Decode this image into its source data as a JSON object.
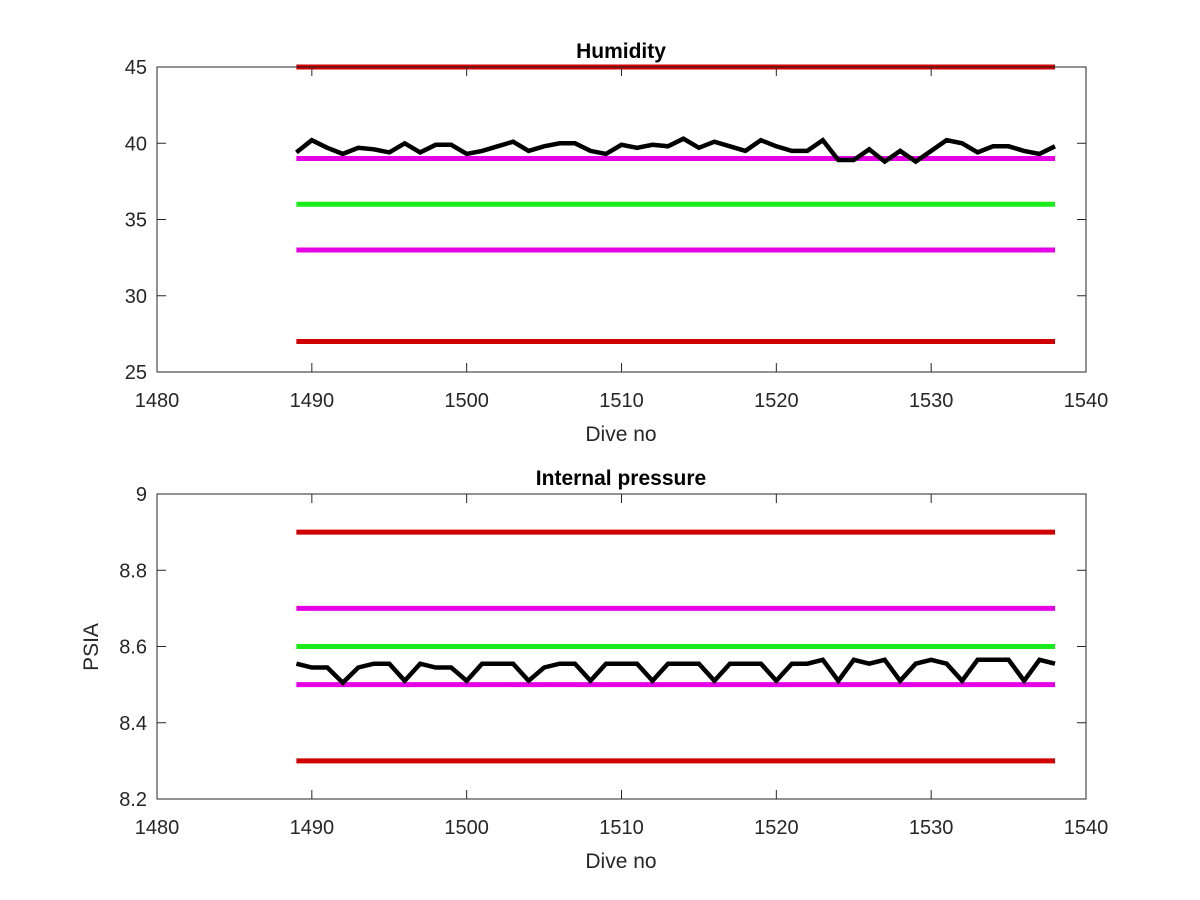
{
  "chart_data": [
    {
      "type": "line",
      "title": "Humidity",
      "xlabel": "Dive no",
      "ylabel": "",
      "xlim": [
        1480,
        1540
      ],
      "ylim": [
        25,
        45
      ],
      "xticks": [
        1480,
        1490,
        1500,
        1510,
        1520,
        1530,
        1540
      ],
      "yticks": [
        25,
        30,
        35,
        40,
        45
      ],
      "xtick_labels": [
        "1480",
        "1490",
        "1500",
        "1510",
        "1520",
        "1530",
        "1540"
      ],
      "ytick_labels": [
        "25",
        "30",
        "35",
        "40",
        "45"
      ],
      "grid": false,
      "legend": "none",
      "threshold_lines": [
        {
          "role": "upper-red",
          "y": 45,
          "x": [
            1489,
            1538
          ],
          "color": "#d00000"
        },
        {
          "role": "upper-magenta",
          "y": 39,
          "x": [
            1489,
            1538
          ],
          "color": "#e600e6"
        },
        {
          "role": "target-green",
          "y": 36,
          "x": [
            1489,
            1538
          ],
          "color": "#1aeb1a"
        },
        {
          "role": "lower-magenta",
          "y": 33,
          "x": [
            1489,
            1538
          ],
          "color": "#e600e6"
        },
        {
          "role": "lower-red",
          "y": 27,
          "x": [
            1489,
            1538
          ],
          "color": "#d00000"
        }
      ],
      "series": [
        {
          "color": "#000000",
          "x": [
            1489,
            1490,
            1491,
            1492,
            1493,
            1494,
            1495,
            1496,
            1497,
            1498,
            1499,
            1500,
            1501,
            1502,
            1503,
            1504,
            1505,
            1506,
            1507,
            1508,
            1509,
            1510,
            1511,
            1512,
            1513,
            1514,
            1515,
            1516,
            1517,
            1518,
            1519,
            1520,
            1521,
            1522,
            1523,
            1524,
            1525,
            1526,
            1527,
            1528,
            1529,
            1530,
            1531,
            1532,
            1533,
            1534,
            1535,
            1536,
            1537,
            1538
          ],
          "values": [
            39.4,
            40.2,
            39.7,
            39.3,
            39.7,
            39.6,
            39.4,
            40.0,
            39.4,
            39.9,
            39.9,
            39.3,
            39.5,
            39.8,
            40.1,
            39.5,
            39.8,
            40.0,
            40.0,
            39.5,
            39.3,
            39.9,
            39.7,
            39.9,
            39.8,
            40.3,
            39.7,
            40.1,
            39.8,
            39.5,
            40.2,
            39.8,
            39.5,
            39.5,
            40.2,
            38.9,
            38.9,
            39.6,
            38.8,
            39.5,
            38.8,
            39.5,
            40.2,
            40.0,
            39.4,
            39.8,
            39.8,
            39.5,
            39.3,
            39.8
          ]
        }
      ]
    },
    {
      "type": "line",
      "title": "Internal pressure",
      "xlabel": "Dive no",
      "ylabel": "PSIA",
      "xlim": [
        1480,
        1540
      ],
      "ylim": [
        8.2,
        9
      ],
      "xticks": [
        1480,
        1490,
        1500,
        1510,
        1520,
        1530,
        1540
      ],
      "yticks": [
        8.2,
        8.4,
        8.6,
        8.8,
        9
      ],
      "xtick_labels": [
        "1480",
        "1490",
        "1500",
        "1510",
        "1520",
        "1530",
        "1540"
      ],
      "ytick_labels": [
        "8.2",
        "8.4",
        "8.6",
        "8.8",
        "9"
      ],
      "grid": false,
      "legend": "none",
      "threshold_lines": [
        {
          "role": "upper-red",
          "y": 8.9,
          "x": [
            1489,
            1538
          ],
          "color": "#d00000"
        },
        {
          "role": "upper-magenta",
          "y": 8.7,
          "x": [
            1489,
            1538
          ],
          "color": "#e600e6"
        },
        {
          "role": "target-green",
          "y": 8.6,
          "x": [
            1489,
            1538
          ],
          "color": "#1aeb1a"
        },
        {
          "role": "lower-magenta",
          "y": 8.5,
          "x": [
            1489,
            1538
          ],
          "color": "#e600e6"
        },
        {
          "role": "lower-red",
          "y": 8.3,
          "x": [
            1489,
            1538
          ],
          "color": "#d00000"
        }
      ],
      "series": [
        {
          "color": "#000000",
          "x": [
            1489,
            1490,
            1491,
            1492,
            1493,
            1494,
            1495,
            1496,
            1497,
            1498,
            1499,
            1500,
            1501,
            1502,
            1503,
            1504,
            1505,
            1506,
            1507,
            1508,
            1509,
            1510,
            1511,
            1512,
            1513,
            1514,
            1515,
            1516,
            1517,
            1518,
            1519,
            1520,
            1521,
            1522,
            1523,
            1524,
            1525,
            1526,
            1527,
            1528,
            1529,
            1530,
            1531,
            1532,
            1533,
            1534,
            1535,
            1536,
            1537,
            1538
          ],
          "values": [
            8.555,
            8.545,
            8.545,
            8.505,
            8.545,
            8.555,
            8.555,
            8.51,
            8.555,
            8.545,
            8.545,
            8.51,
            8.555,
            8.555,
            8.555,
            8.51,
            8.545,
            8.555,
            8.555,
            8.51,
            8.555,
            8.555,
            8.555,
            8.51,
            8.555,
            8.555,
            8.555,
            8.51,
            8.555,
            8.555,
            8.555,
            8.51,
            8.555,
            8.555,
            8.565,
            8.51,
            8.565,
            8.555,
            8.565,
            8.51,
            8.555,
            8.565,
            8.555,
            8.51,
            8.565,
            8.565,
            8.565,
            8.51,
            8.565,
            8.555
          ]
        }
      ]
    }
  ]
}
